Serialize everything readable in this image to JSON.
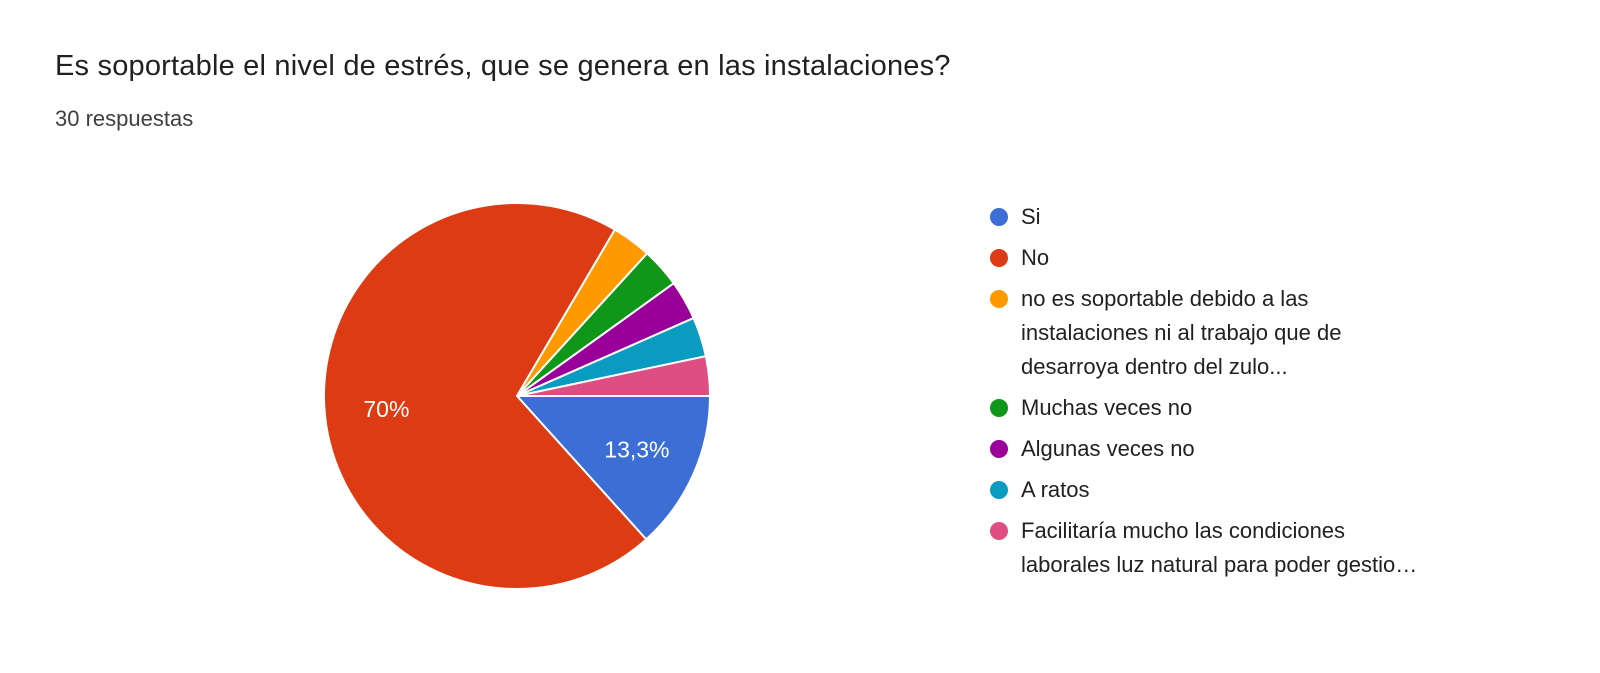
{
  "header": {
    "title": "Es soportable el nivel de estrés, que se genera en las instalaciones?",
    "subtitle": "30 respuestas"
  },
  "chart_data": {
    "type": "pie",
    "title": "Es soportable el nivel de estrés, que se genera en las instalaciones?",
    "subtitle": "30 respuestas",
    "total_responses": 30,
    "legend_position": "right",
    "direction": "clockwise",
    "start_angle_deg": 90,
    "slices": [
      {
        "label": "Si",
        "percent": 13.3,
        "responses": 4,
        "color": "#3c6ed5",
        "pct_label": "13,3%"
      },
      {
        "label": "No",
        "percent": 70,
        "responses": 21,
        "color": "#dc3b13",
        "pct_label": "70%"
      },
      {
        "label": "no es soportable debido a las\ninstalaciones ni al trabajo que de\ndesarroya dentro del zulo...",
        "percent": 3.3,
        "responses": 1,
        "color": "#ff9900",
        "pct_label": ""
      },
      {
        "label": "Muchas veces no",
        "percent": 3.3,
        "responses": 1,
        "color": "#109618",
        "pct_label": ""
      },
      {
        "label": "Algunas veces no",
        "percent": 3.3,
        "responses": 1,
        "color": "#990099",
        "pct_label": ""
      },
      {
        "label": "A ratos",
        "percent": 3.3,
        "responses": 1,
        "color": "#0a9bc1",
        "pct_label": ""
      },
      {
        "label": "Facilitaría mucho las condiciones\nlaborales luz natural para poder gestio…",
        "percent": 3.3,
        "responses": 1,
        "color": "#de4e82",
        "pct_label": ""
      }
    ]
  }
}
